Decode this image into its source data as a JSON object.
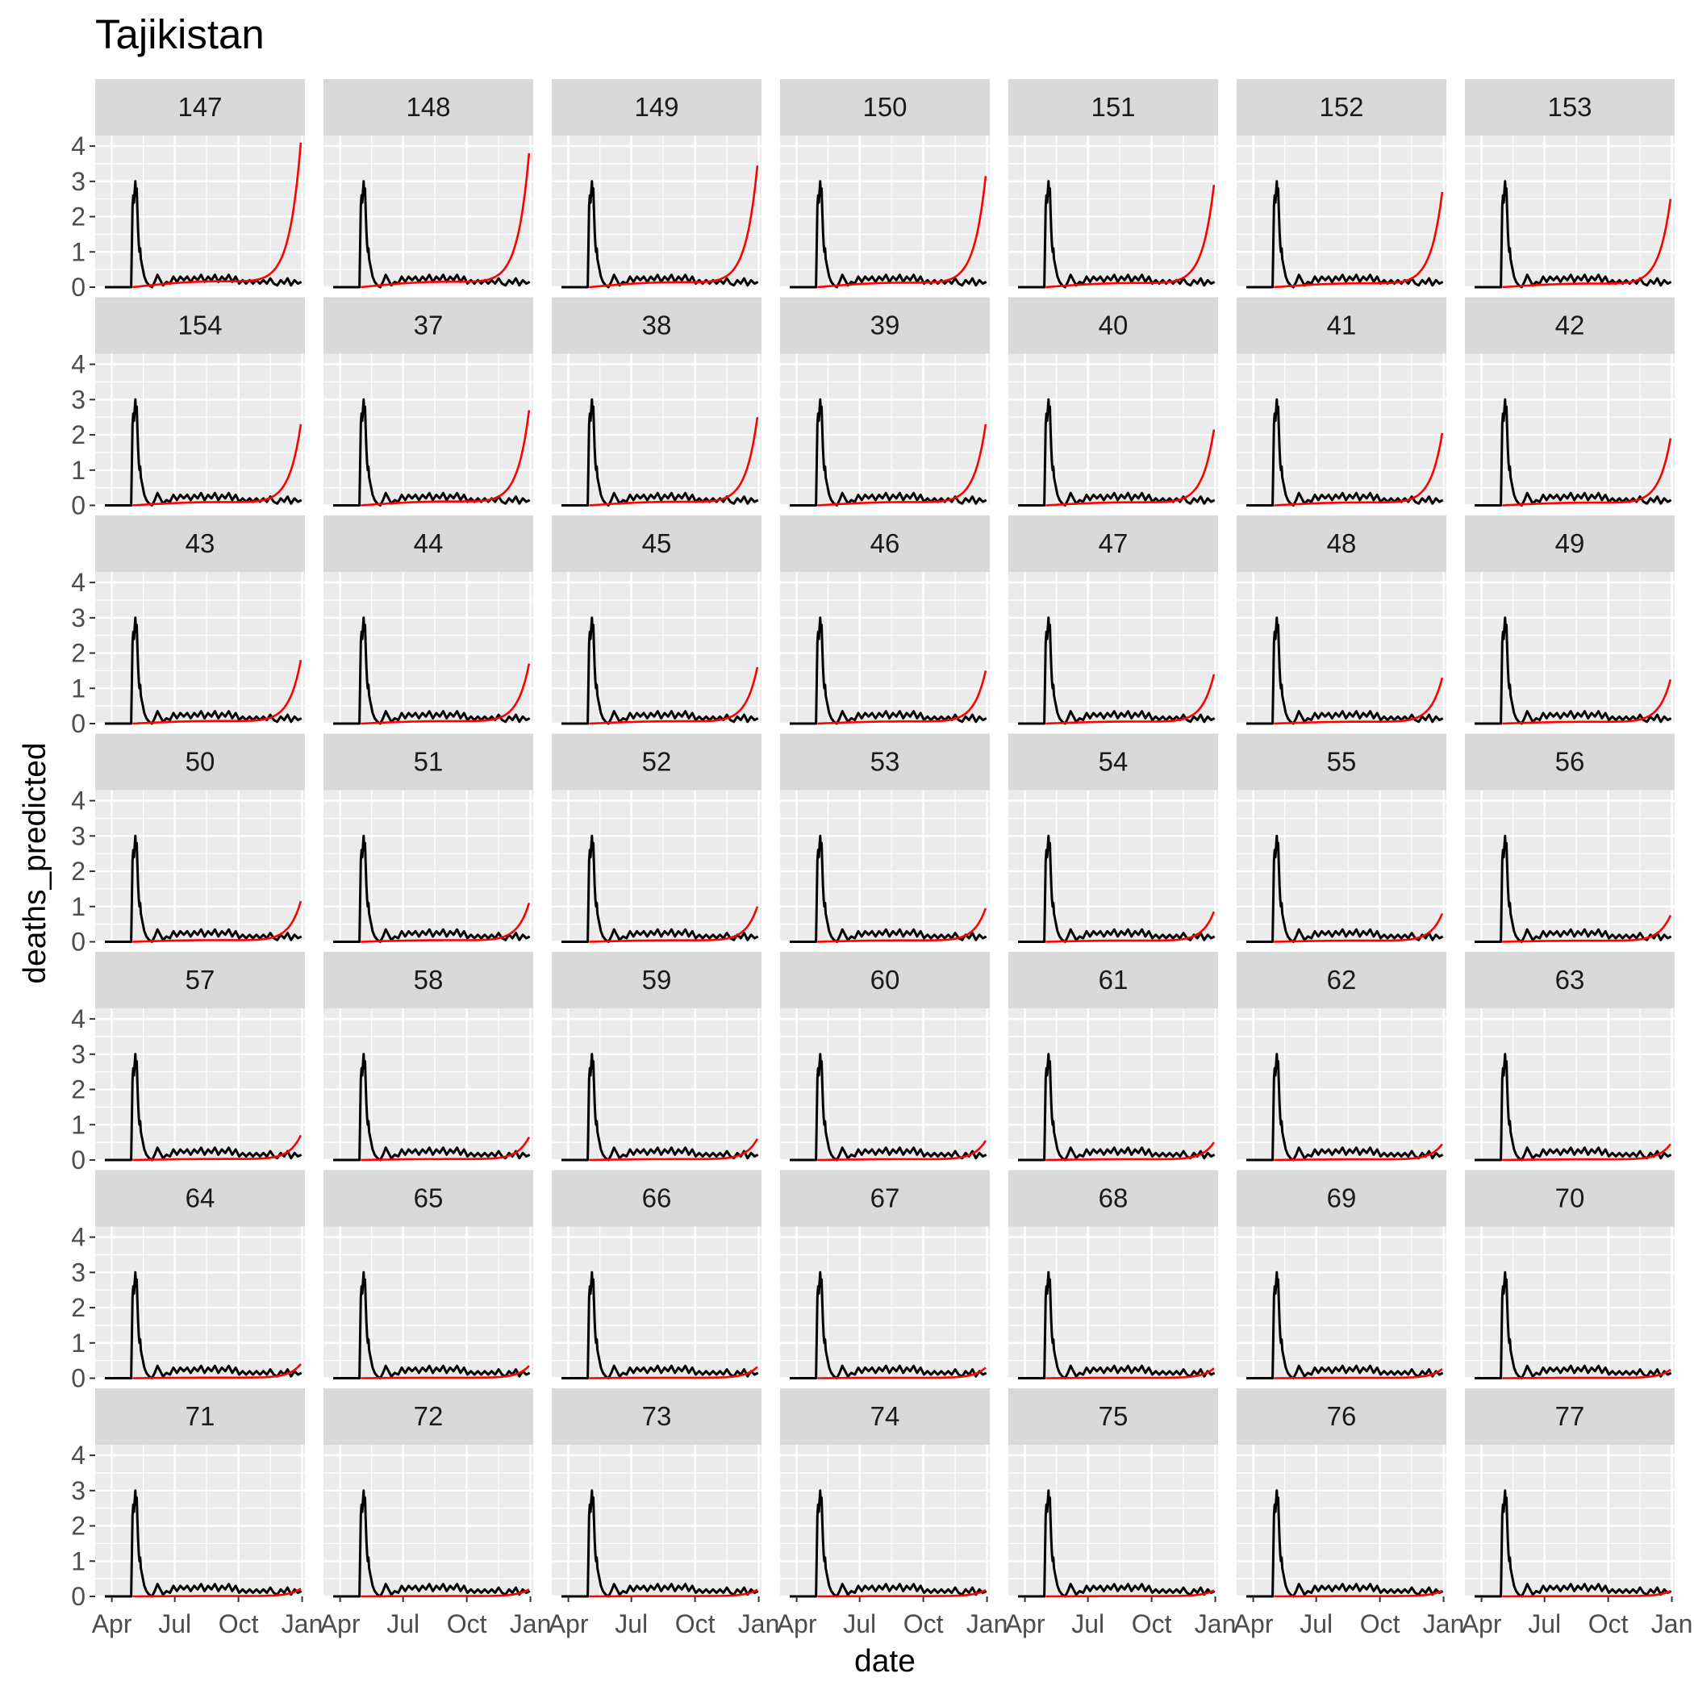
{
  "chart_data": {
    "type": "line",
    "title": "Tajikistan",
    "xlabel": "date",
    "ylabel": "deaths_predicted",
    "ylim": [
      0,
      4.3
    ],
    "y_ticks": [
      0,
      1,
      2,
      3,
      4
    ],
    "x_range": [
      "2020-03-08",
      "2021-01-05"
    ],
    "x_ticks": [
      {
        "date": "2020-04-01",
        "label": "Apr"
      },
      {
        "date": "2020-07-01",
        "label": "Jul"
      },
      {
        "date": "2020-10-01",
        "label": "Oct"
      },
      {
        "date": "2021-01-01",
        "label": "Jan"
      }
    ],
    "grid": true,
    "facet_columns": 7,
    "series_colors": {
      "observed": "#000000",
      "predicted": "#ff0000"
    },
    "observed": {
      "x": [
        "2020-04-29",
        "2020-05-01",
        "2020-05-02",
        "2020-05-03",
        "2020-05-04",
        "2020-05-05",
        "2020-05-06",
        "2020-05-07",
        "2020-05-08",
        "2020-05-09",
        "2020-05-10",
        "2020-05-11",
        "2020-05-12",
        "2020-05-13",
        "2020-05-15",
        "2020-05-18",
        "2020-05-21",
        "2020-05-25",
        "2020-05-29",
        "2020-06-02",
        "2020-06-06",
        "2020-06-10",
        "2020-06-14",
        "2020-06-19",
        "2020-06-24",
        "2020-06-29",
        "2020-07-04",
        "2020-07-09",
        "2020-07-14",
        "2020-07-19",
        "2020-07-24",
        "2020-07-29",
        "2020-08-03",
        "2020-08-08",
        "2020-08-13",
        "2020-08-18",
        "2020-08-23",
        "2020-08-28",
        "2020-09-02",
        "2020-09-07",
        "2020-09-12",
        "2020-09-17",
        "2020-09-22",
        "2020-09-27",
        "2020-10-02",
        "2020-10-07",
        "2020-10-12",
        "2020-10-17",
        "2020-10-22",
        "2020-10-27",
        "2020-11-01",
        "2020-11-06",
        "2020-11-11",
        "2020-11-16",
        "2020-11-21",
        "2020-11-26",
        "2020-12-01",
        "2020-12-06",
        "2020-12-11",
        "2020-12-16",
        "2020-12-21",
        "2020-12-26",
        "2020-12-31"
      ],
      "y": [
        0,
        2.3,
        2.6,
        2.4,
        2.7,
        3.0,
        2.6,
        2.8,
        2.2,
        1.6,
        1.2,
        1.0,
        1.1,
        0.8,
        0.6,
        0.3,
        0.15,
        0.05,
        0,
        0.15,
        0.35,
        0.2,
        0.05,
        0.15,
        0.1,
        0.3,
        0.15,
        0.3,
        0.2,
        0.3,
        0.15,
        0.3,
        0.2,
        0.35,
        0.15,
        0.3,
        0.2,
        0.35,
        0.15,
        0.3,
        0.2,
        0.35,
        0.15,
        0.3,
        0.1,
        0.2,
        0.1,
        0.2,
        0.1,
        0.2,
        0.1,
        0.2,
        0.1,
        0.25,
        0.1,
        0.05,
        0.2,
        0.1,
        0.25,
        0.05,
        0.2,
        0.1,
        0.15
      ]
    },
    "panels": [
      {
        "label": "147",
        "end": 4.1
      },
      {
        "label": "148",
        "end": 3.8
      },
      {
        "label": "149",
        "end": 3.45
      },
      {
        "label": "150",
        "end": 3.15
      },
      {
        "label": "151",
        "end": 2.9
      },
      {
        "label": "152",
        "end": 2.7
      },
      {
        "label": "153",
        "end": 2.5
      },
      {
        "label": "154",
        "end": 2.3
      },
      {
        "label": "37",
        "end": 2.7
      },
      {
        "label": "38",
        "end": 2.5
      },
      {
        "label": "39",
        "end": 2.3
      },
      {
        "label": "40",
        "end": 2.15
      },
      {
        "label": "41",
        "end": 2.05
      },
      {
        "label": "42",
        "end": 1.9
      },
      {
        "label": "43",
        "end": 1.8
      },
      {
        "label": "44",
        "end": 1.7
      },
      {
        "label": "45",
        "end": 1.6
      },
      {
        "label": "46",
        "end": 1.5
      },
      {
        "label": "47",
        "end": 1.4
      },
      {
        "label": "48",
        "end": 1.3
      },
      {
        "label": "49",
        "end": 1.25
      },
      {
        "label": "50",
        "end": 1.15
      },
      {
        "label": "51",
        "end": 1.1
      },
      {
        "label": "52",
        "end": 1.0
      },
      {
        "label": "53",
        "end": 0.95
      },
      {
        "label": "54",
        "end": 0.85
      },
      {
        "label": "55",
        "end": 0.8
      },
      {
        "label": "56",
        "end": 0.75
      },
      {
        "label": "57",
        "end": 0.7
      },
      {
        "label": "58",
        "end": 0.65
      },
      {
        "label": "59",
        "end": 0.6
      },
      {
        "label": "60",
        "end": 0.55
      },
      {
        "label": "61",
        "end": 0.5
      },
      {
        "label": "62",
        "end": 0.45
      },
      {
        "label": "63",
        "end": 0.45
      },
      {
        "label": "64",
        "end": 0.4
      },
      {
        "label": "65",
        "end": 0.35
      },
      {
        "label": "66",
        "end": 0.32
      },
      {
        "label": "67",
        "end": 0.3
      },
      {
        "label": "68",
        "end": 0.28
      },
      {
        "label": "69",
        "end": 0.26
      },
      {
        "label": "70",
        "end": 0.24
      },
      {
        "label": "71",
        "end": 0.22
      },
      {
        "label": "72",
        "end": 0.2
      },
      {
        "label": "73",
        "end": 0.19
      },
      {
        "label": "74",
        "end": 0.18
      },
      {
        "label": "75",
        "end": 0.17
      },
      {
        "label": "76",
        "end": 0.16
      },
      {
        "label": "77",
        "end": 0.15
      }
    ]
  }
}
